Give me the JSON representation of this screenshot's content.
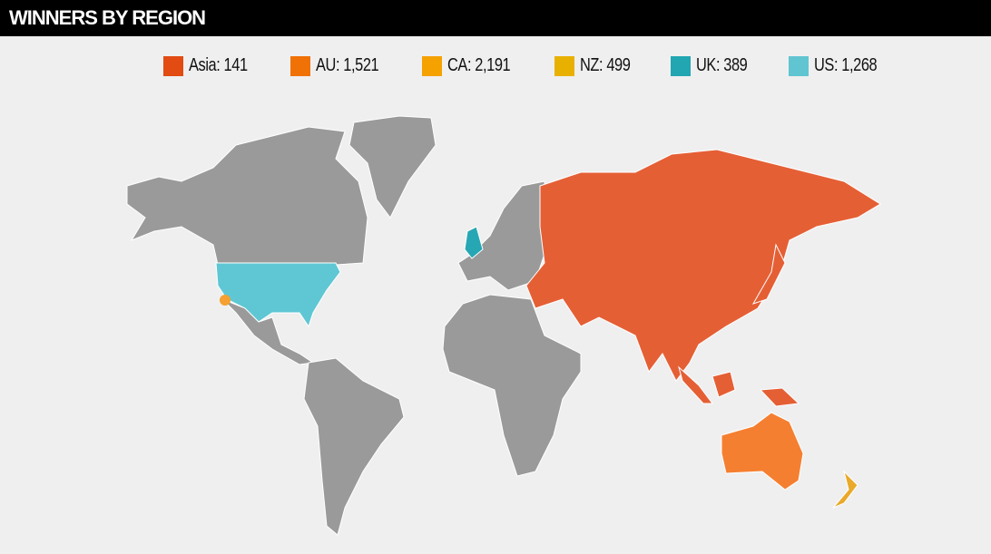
{
  "header": {
    "title": "WINNERS BY REGION"
  },
  "legend": [
    {
      "label": "Asia: 141",
      "region": "Asia",
      "value": 141,
      "color": "#e24b12"
    },
    {
      "label": "AU: 1,521",
      "region": "AU",
      "value": 1521,
      "color": "#f07105"
    },
    {
      "label": "CA: 2,191",
      "region": "CA",
      "value": 2191,
      "color": "#f5a100"
    },
    {
      "label": "NZ: 499",
      "region": "NZ",
      "value": 499,
      "color": "#e8b102"
    },
    {
      "label": "UK: 389",
      "region": "UK",
      "value": 389,
      "color": "#21a6b2"
    },
    {
      "label": "US: 1,268",
      "region": "US",
      "value": 1268,
      "color": "#60c5d1"
    }
  ],
  "map_colors": {
    "land": "#9a9a9a",
    "Asia": "#e55f35",
    "AU": "#f57f30",
    "CA": "#f5a030",
    "NZ": "#e9a92a",
    "UK": "#27a7b4",
    "US": "#5fc7d3"
  }
}
